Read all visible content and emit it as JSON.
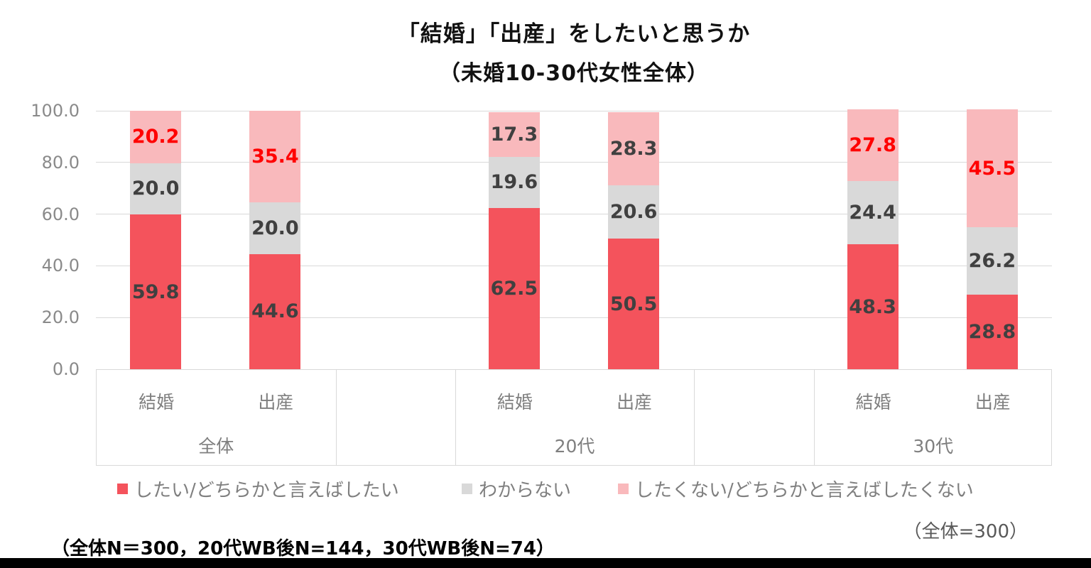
{
  "colors": {
    "series_red": "#f4535c",
    "series_gray": "#d9d9d9",
    "series_pink": "#f9b9bc",
    "label_dark": "#404040",
    "label_red": "#ff0000",
    "axis_text": "#7f7f7f",
    "gridline": "#d9d9d9"
  },
  "footnotes": {
    "right": "（全体=300）",
    "left": "（全体N＝300，20代WB後N=144，30代WB後N=74）"
  },
  "chart_data": {
    "type": "bar",
    "stacked": true,
    "title": "「結婚」「出産」をしたいと思うか",
    "subtitle": "（未婚10-30代女性全体）",
    "ylim": [
      0,
      100
    ],
    "grid": true,
    "legend_position": "bottom",
    "yticks": [
      {
        "value": 0,
        "label": "0.0"
      },
      {
        "value": 20,
        "label": "20.0"
      },
      {
        "value": 40,
        "label": "40.0"
      },
      {
        "value": 60,
        "label": "60.0"
      },
      {
        "value": 80,
        "label": "80.0"
      },
      {
        "value": 100,
        "label": "100.0"
      }
    ],
    "series": [
      {
        "name": "したい/どちらかと言えばしたい",
        "color": "#f4535c"
      },
      {
        "name": "わからない",
        "color": "#d9d9d9"
      },
      {
        "name": "したくない/どちらかと言えばしたくない",
        "color": "#f9b9bc"
      }
    ],
    "groups": [
      {
        "label": "全体",
        "bars": [
          {
            "category": "結婚",
            "values": [
              59.8,
              20.0,
              20.2
            ],
            "label_colors": [
              "dark",
              "dark",
              "red"
            ]
          },
          {
            "category": "出産",
            "values": [
              44.6,
              20.0,
              35.4
            ],
            "label_colors": [
              "dark",
              "dark",
              "red"
            ]
          }
        ]
      },
      {
        "label": "20代",
        "bars": [
          {
            "category": "結婚",
            "values": [
              62.5,
              19.6,
              17.3
            ],
            "label_colors": [
              "dark",
              "dark",
              "dark"
            ]
          },
          {
            "category": "出産",
            "values": [
              50.5,
              20.6,
              28.3
            ],
            "label_colors": [
              "dark",
              "dark",
              "dark"
            ]
          }
        ]
      },
      {
        "label": "30代",
        "bars": [
          {
            "category": "結婚",
            "values": [
              48.3,
              24.4,
              27.8
            ],
            "label_colors": [
              "dark",
              "dark",
              "red"
            ]
          },
          {
            "category": "出産",
            "values": [
              28.8,
              26.2,
              45.5
            ],
            "label_colors": [
              "dark",
              "dark",
              "red"
            ]
          }
        ]
      }
    ]
  }
}
